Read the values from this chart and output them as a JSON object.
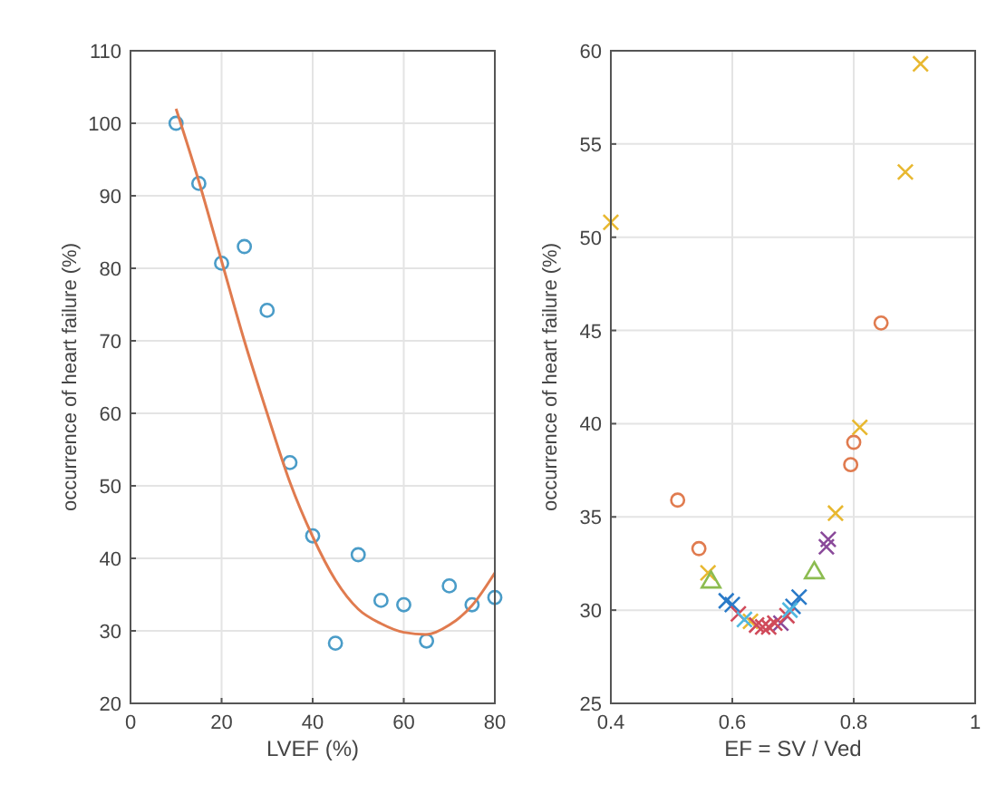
{
  "chart_data": [
    {
      "type": "scatter",
      "xlabel": "LVEF (%)",
      "ylabel": "occurrence of heart failure (%)",
      "xlim": [
        0,
        80
      ],
      "xticks": [
        0,
        20,
        40,
        60,
        80
      ],
      "ylim": [
        20,
        110
      ],
      "yticks": [
        20,
        30,
        40,
        50,
        60,
        70,
        80,
        90,
        100,
        110
      ],
      "grid": true,
      "series": [
        {
          "marker": "circle",
          "color": "#4a9cc8",
          "x": [
            10,
            15,
            20,
            25,
            30,
            35,
            40,
            45,
            50,
            55,
            60,
            65,
            70,
            75,
            80
          ],
          "values": [
            100,
            91.7,
            80.7,
            83,
            74.2,
            53.2,
            43.1,
            28.3,
            40.5,
            34.2,
            33.6,
            28.6,
            36.2,
            33.6,
            34.6
          ]
        },
        {
          "type": "line",
          "marker": "none",
          "color": "#e07b4f",
          "x": [
            10,
            15,
            20,
            25,
            30,
            35,
            40,
            45,
            50,
            55,
            60,
            65,
            70,
            75,
            80
          ],
          "values": [
            102,
            92,
            81,
            70,
            60,
            50.5,
            43,
            37,
            33,
            31,
            29.8,
            29.5,
            30.8,
            33.5,
            38
          ]
        }
      ]
    },
    {
      "type": "scatter",
      "xlabel": "EF = SV / Ved",
      "ylabel": "occurrence of heart failure (%)",
      "xlim": [
        0.4,
        1
      ],
      "xticks": [
        0.4,
        0.6,
        0.8,
        1
      ],
      "ylim": [
        25,
        60
      ],
      "yticks": [
        25,
        30,
        35,
        40,
        45,
        50,
        55,
        60
      ],
      "grid": true,
      "series": [
        {
          "marker": "circle",
          "color": "#e07b4f",
          "x": [
            0.51,
            0.545,
            0.795,
            0.8,
            0.845
          ],
          "values": [
            35.9,
            33.3,
            37.8,
            39,
            45.4
          ]
        },
        {
          "marker": "cross",
          "color": "#e8b830",
          "x": [
            0.4,
            0.56,
            0.63,
            0.77,
            0.81,
            0.885,
            0.91
          ],
          "values": [
            50.8,
            32,
            29.4,
            35.2,
            39.8,
            53.5,
            59.3
          ]
        },
        {
          "marker": "triangle",
          "color": "#8cbc50",
          "x": [
            0.565,
            0.735
          ],
          "values": [
            31.5,
            32
          ]
        },
        {
          "marker": "cross",
          "color": "#8a4a9a",
          "x": [
            0.68,
            0.755,
            0.758
          ],
          "values": [
            29.3,
            33.4,
            33.8
          ]
        },
        {
          "marker": "cross",
          "color": "#2a7ac8",
          "x": [
            0.59,
            0.6,
            0.7,
            0.71
          ],
          "values": [
            30.5,
            30.3,
            30.2,
            30.7
          ]
        },
        {
          "marker": "cross",
          "color": "#d04a5a",
          "x": [
            0.61,
            0.64,
            0.65,
            0.66,
            0.67,
            0.69
          ],
          "values": [
            29.8,
            29.2,
            29.1,
            29.1,
            29.3,
            29.7
          ]
        },
        {
          "marker": "cross",
          "color": "#50b8e0",
          "x": [
            0.62,
            0.695
          ],
          "values": [
            29.5,
            30
          ]
        }
      ]
    }
  ]
}
